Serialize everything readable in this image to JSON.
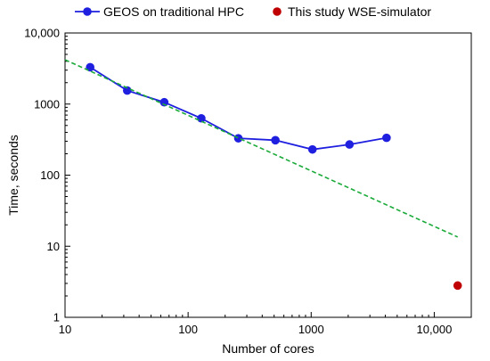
{
  "chart_data": {
    "type": "scatter",
    "title": "",
    "xlabel": "Number of cores",
    "ylabel": "Time, seconds",
    "x_scale": "log",
    "y_scale": "log",
    "xlim": [
      10,
      20000
    ],
    "ylim": [
      1,
      10000
    ],
    "x_ticks": [
      {
        "value": 10,
        "label": "10"
      },
      {
        "value": 100,
        "label": "100"
      },
      {
        "value": 1000,
        "label": "1000"
      },
      {
        "value": 10000,
        "label": "10,000"
      }
    ],
    "y_ticks": [
      {
        "value": 1,
        "label": "1"
      },
      {
        "value": 10,
        "label": "10"
      },
      {
        "value": 100,
        "label": "100"
      },
      {
        "value": 1000,
        "label": "1000"
      },
      {
        "value": 10000,
        "label": "10,000"
      }
    ],
    "grid": false,
    "legend_position": "top",
    "series": [
      {
        "name": "GEOS on traditional HPC",
        "style": "line-markers",
        "color": "#1f1fe0",
        "points": [
          [
            16,
            3300
          ],
          [
            32,
            1550
          ],
          [
            64,
            1060
          ],
          [
            128,
            630
          ],
          [
            256,
            330
          ],
          [
            512,
            310
          ],
          [
            1024,
            230
          ],
          [
            2048,
            270
          ],
          [
            4096,
            335
          ]
        ]
      },
      {
        "name": "This study WSE-simulator",
        "style": "markers",
        "color": "#c00000",
        "points": [
          [
            15500,
            2.8
          ]
        ]
      },
      {
        "name": "",
        "style": "dashed-trend",
        "color": "#1aaa3a",
        "points": [
          [
            10,
            4200
          ],
          [
            15500,
            13.5
          ]
        ]
      }
    ]
  }
}
